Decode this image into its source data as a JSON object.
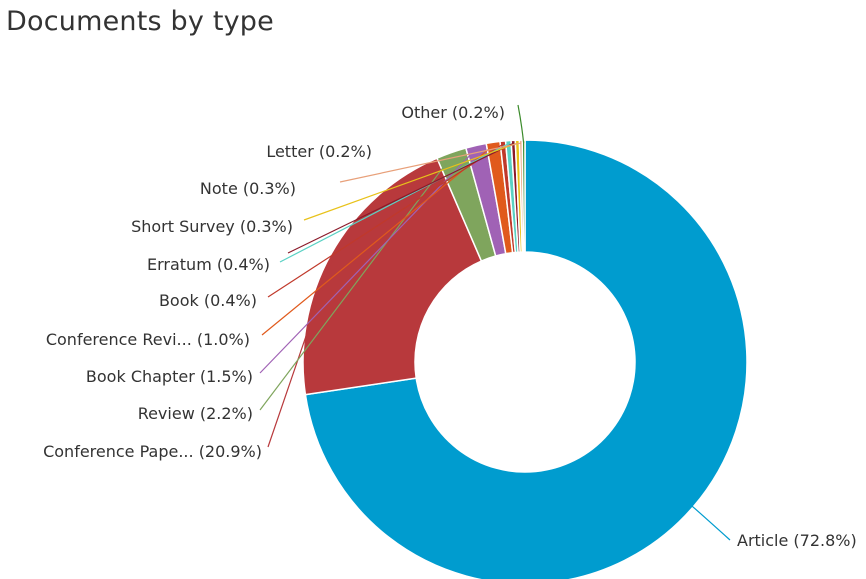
{
  "title": "Documents by type",
  "chart_data": {
    "type": "pie",
    "donut": true,
    "title": "Documents by type",
    "slices": [
      {
        "name": "Article",
        "label": "Article (72.8%)",
        "value": 72.8,
        "color": "#009ccf"
      },
      {
        "name": "Conference Pape...",
        "label": "Conference Pape... (20.9%)",
        "value": 20.9,
        "color": "#b8393c"
      },
      {
        "name": "Review",
        "label": "Review (2.2%)",
        "value": 2.2,
        "color": "#7fa55d"
      },
      {
        "name": "Book Chapter",
        "label": "Book Chapter (1.5%)",
        "value": 1.5,
        "color": "#a062b5"
      },
      {
        "name": "Conference Revi...",
        "label": "Conference Revi... (1.0%)",
        "value": 1.0,
        "color": "#e05a1c"
      },
      {
        "name": "Book",
        "label": "Book (0.4%)",
        "value": 0.4,
        "color": "#c0392b"
      },
      {
        "name": "Erratum",
        "label": "Erratum (0.4%)",
        "value": 0.4,
        "color": "#5ad1c4"
      },
      {
        "name": "Short Survey",
        "label": "Short Survey (0.3%)",
        "value": 0.3,
        "color": "#8b1a2a"
      },
      {
        "name": "Note",
        "label": "Note (0.3%)",
        "value": 0.3,
        "color": "#e8c21a"
      },
      {
        "name": "Letter",
        "label": "Letter (0.2%)",
        "value": 0.2,
        "color": "#e8a07a"
      },
      {
        "name": "Other",
        "label": "Other (0.2%)",
        "value": 0.2,
        "color": "#3a8a2a"
      }
    ]
  }
}
